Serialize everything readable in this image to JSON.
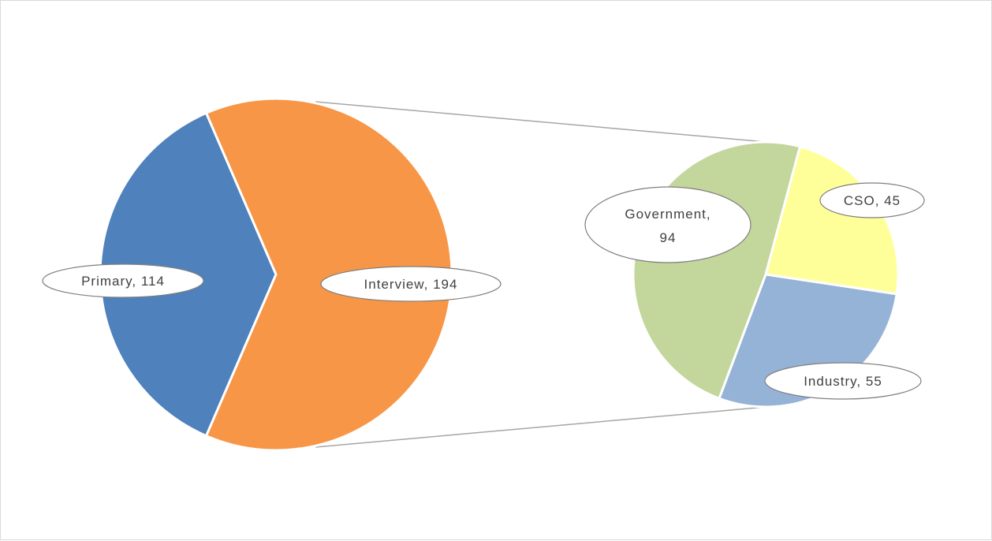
{
  "chart_data": {
    "type": "pie",
    "variant": "pie-of-pie",
    "title": "",
    "primary_pie": {
      "slices": [
        {
          "label": "Primary",
          "value": 114,
          "color": "#4f81bd",
          "label_text": "Primary, 114"
        },
        {
          "label": "Interview",
          "value": 194,
          "color": "#f79646",
          "label_text": "Interview, 194"
        }
      ]
    },
    "secondary_pie": {
      "source_slice": "Interview",
      "slices": [
        {
          "label": "CSO",
          "value": 45,
          "color": "#ffff99",
          "label_text": "CSO, 45"
        },
        {
          "label": "Industry",
          "value": 55,
          "color": "#95b3d7",
          "label_text": "Industry, 55"
        },
        {
          "label": "Government",
          "value": 94,
          "color": "#c3d69b",
          "label_text_lines": [
            "Government,",
            "94"
          ]
        }
      ]
    },
    "legend": "none",
    "grid": false
  }
}
